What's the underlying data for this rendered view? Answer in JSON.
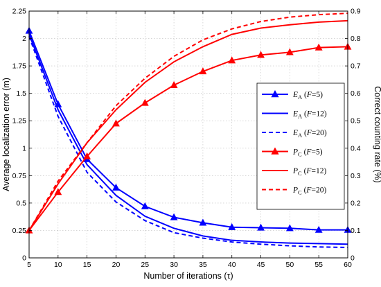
{
  "chart_data": {
    "type": "line",
    "xlabel": "Number of iterations (τ)",
    "ylabel_left": "Average localization error (m)",
    "ylabel_right": "Correct counting rate (%)",
    "x": [
      5,
      10,
      15,
      20,
      25,
      30,
      35,
      40,
      45,
      50,
      55,
      60
    ],
    "xlim": [
      5,
      60
    ],
    "xticks": [
      "5",
      "10",
      "15",
      "20",
      "25",
      "30",
      "35",
      "40",
      "45",
      "50",
      "55",
      "60"
    ],
    "ylim_left": [
      0,
      2.25
    ],
    "yticks_left": [
      "0",
      "0.25",
      "0.5",
      "0.75",
      "1",
      "1.25",
      "1.5",
      "1.75",
      "2",
      "2.25"
    ],
    "ylim_right": [
      0,
      0.9
    ],
    "yticks_right": [
      "0",
      "0.1",
      "0.2",
      "0.3",
      "0.4",
      "0.5",
      "0.6",
      "0.7",
      "0.8",
      "0.9"
    ],
    "grid": true,
    "legend_position": "right-center",
    "series": [
      {
        "name": "E_A (F=5)",
        "axis": "left",
        "color": "#0000ff",
        "style": "solid",
        "marker": "triangle",
        "values": [
          2.07,
          1.4,
          0.9,
          0.64,
          0.47,
          0.37,
          0.32,
          0.28,
          0.275,
          0.27,
          0.255,
          0.255
        ]
      },
      {
        "name": "E_A (F=12)",
        "axis": "left",
        "color": "#0000ff",
        "style": "solid",
        "marker": "none",
        "values": [
          2.04,
          1.35,
          0.85,
          0.57,
          0.38,
          0.27,
          0.2,
          0.16,
          0.145,
          0.135,
          0.13,
          0.125
        ]
      },
      {
        "name": "E_A (F=20)",
        "axis": "left",
        "color": "#0000ff",
        "style": "dashed",
        "marker": "none",
        "values": [
          2.02,
          1.29,
          0.78,
          0.51,
          0.34,
          0.23,
          0.18,
          0.145,
          0.125,
          0.11,
          0.1,
          0.095
        ]
      },
      {
        "name": "P_C (F=5)",
        "axis": "right",
        "color": "#ff0000",
        "style": "solid",
        "marker": "triangle",
        "values": [
          0.1,
          0.24,
          0.37,
          0.49,
          0.565,
          0.63,
          0.68,
          0.72,
          0.74,
          0.75,
          0.767,
          0.77
        ]
      },
      {
        "name": "P_C (F=12)",
        "axis": "right",
        "color": "#ff0000",
        "style": "solid",
        "marker": "none",
        "values": [
          0.1,
          0.27,
          0.42,
          0.54,
          0.64,
          0.715,
          0.77,
          0.815,
          0.838,
          0.85,
          0.86,
          0.865
        ]
      },
      {
        "name": "P_C (F=20)",
        "axis": "right",
        "color": "#ff0000",
        "style": "dashed",
        "marker": "none",
        "values": [
          0.1,
          0.28,
          0.42,
          0.555,
          0.655,
          0.735,
          0.795,
          0.835,
          0.862,
          0.878,
          0.887,
          0.892
        ]
      }
    ],
    "legend": [
      {
        "var": "E",
        "sub": "A",
        "param": "F",
        "val": "5"
      },
      {
        "var": "E",
        "sub": "A",
        "param": "F",
        "val": "12"
      },
      {
        "var": "E",
        "sub": "A",
        "param": "F",
        "val": "20"
      },
      {
        "var": "P",
        "sub": "C",
        "param": "F",
        "val": "5"
      },
      {
        "var": "P",
        "sub": "C",
        "param": "F",
        "val": "12"
      },
      {
        "var": "P",
        "sub": "C",
        "param": "F",
        "val": "20"
      }
    ]
  }
}
